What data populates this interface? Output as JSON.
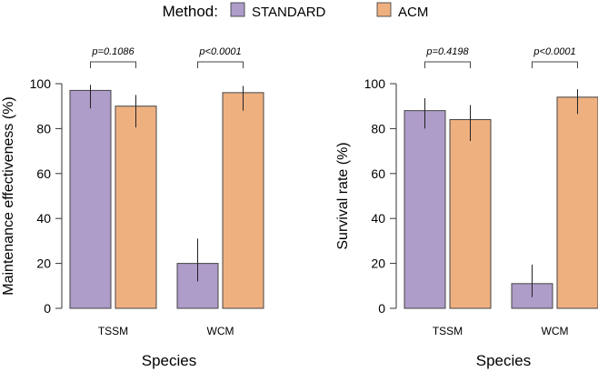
{
  "legend": {
    "title": "Method:",
    "entries": [
      "STANDARD",
      "ACM"
    ]
  },
  "colors": {
    "STANDARD": "#ae9cc9",
    "ACM": "#efb080"
  },
  "chart_data": [
    {
      "type": "bar",
      "xlabel": "Species",
      "ylabel": "Maintenance effectiveness (%)",
      "ylim": [
        0,
        100
      ],
      "yticks": [
        "0",
        "20",
        "40",
        "60",
        "80",
        "100"
      ],
      "categories": [
        "TSSM",
        "WCM"
      ],
      "series": [
        {
          "name": "STANDARD",
          "values": [
            97,
            20
          ],
          "err_low": [
            89,
            12
          ],
          "err_high": [
            99.5,
            31
          ]
        },
        {
          "name": "ACM",
          "values": [
            90,
            96
          ],
          "err_low": [
            80.5,
            88
          ],
          "err_high": [
            95,
            99
          ]
        }
      ],
      "annotations": [
        "p=0.1086",
        "p<0.0001"
      ]
    },
    {
      "type": "bar",
      "xlabel": "Species",
      "ylabel": "Survival rate (%)",
      "ylim": [
        0,
        100
      ],
      "yticks": [
        "0",
        "20",
        "40",
        "60",
        "80",
        "100"
      ],
      "categories": [
        "TSSM",
        "WCM"
      ],
      "series": [
        {
          "name": "STANDARD",
          "values": [
            88,
            11
          ],
          "err_low": [
            80,
            5
          ],
          "err_high": [
            93.5,
            19.5
          ]
        },
        {
          "name": "ACM",
          "values": [
            84,
            94
          ],
          "err_low": [
            74.5,
            86.5
          ],
          "err_high": [
            90.5,
            97.5
          ]
        }
      ],
      "annotations": [
        "p=0.4198",
        "p<0.0001"
      ]
    }
  ]
}
